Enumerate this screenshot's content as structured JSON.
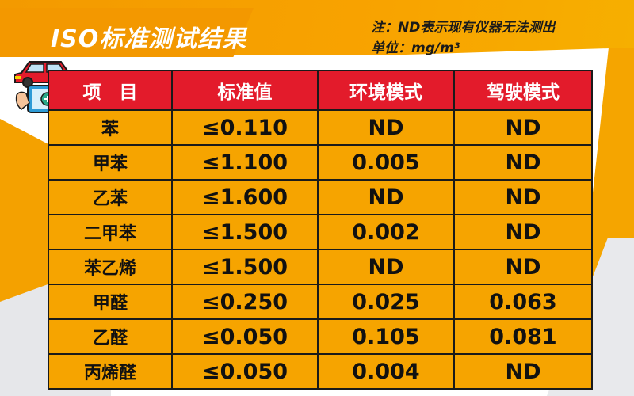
{
  "header": {
    "title": "ISO标准测试结果",
    "note_line1": "注：ND表示现有仪器无法测出",
    "note_line2": "单位：mg/m³"
  },
  "table": {
    "columns": [
      "项　目",
      "标准值",
      "环境模式",
      "驾驶模式"
    ],
    "rows": [
      {
        "item": "苯",
        "standard": "≤0.110",
        "env": "ND",
        "drive": "ND"
      },
      {
        "item": "甲苯",
        "standard": "≤1.100",
        "env": "0.005",
        "drive": "ND"
      },
      {
        "item": "乙苯",
        "standard": "≤1.600",
        "env": "ND",
        "drive": "ND"
      },
      {
        "item": "二甲苯",
        "standard": "≤1.500",
        "env": "0.002",
        "drive": "ND"
      },
      {
        "item": "苯乙烯",
        "standard": "≤1.500",
        "env": "ND",
        "drive": "ND"
      },
      {
        "item": "甲醛",
        "standard": "≤0.250",
        "env": "0.025",
        "drive": "0.063"
      },
      {
        "item": "乙醛",
        "standard": "≤0.050",
        "env": "0.105",
        "drive": "0.081"
      },
      {
        "item": "丙烯醛",
        "standard": "≤0.050",
        "env": "0.004",
        "drive": "ND"
      }
    ]
  },
  "icon": "car-tablet-icon",
  "colors": {
    "accent": "#f39800",
    "header_red": "#e31b2b",
    "cell_orange": "#f6a400"
  }
}
